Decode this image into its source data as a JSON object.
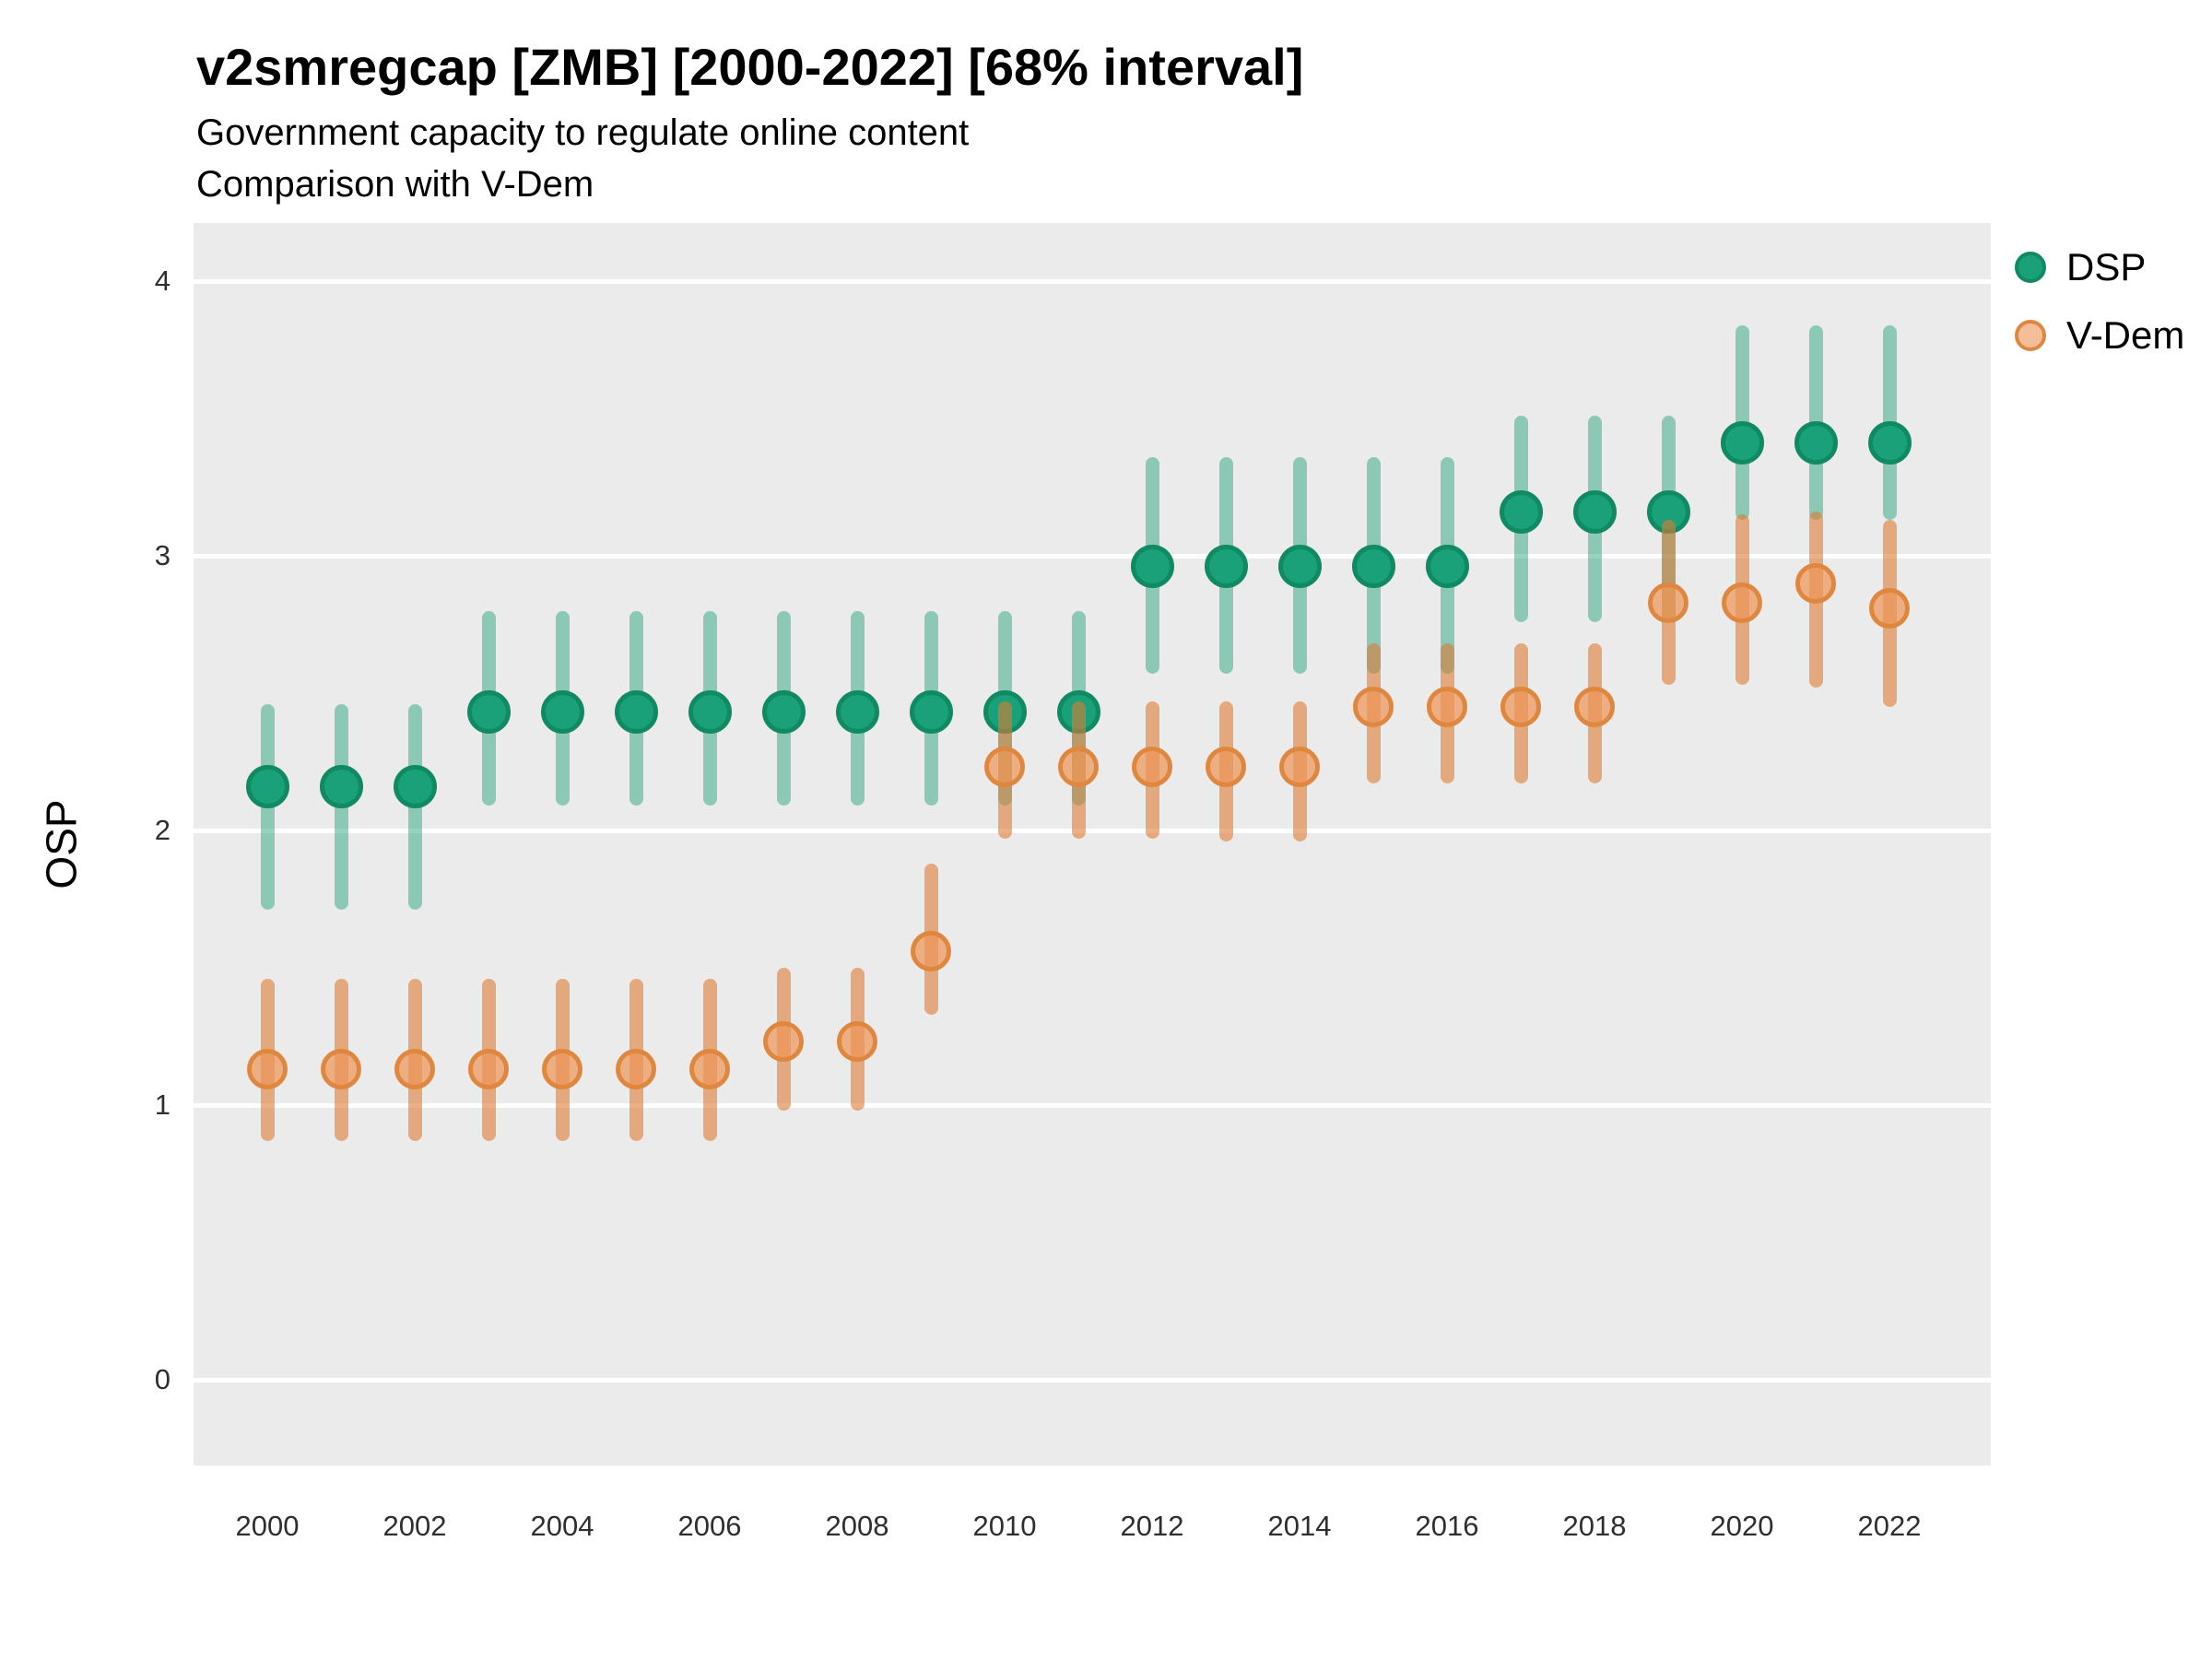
{
  "header": {
    "title": "v2smregcap [ZMB] [2000-2022] [68% interval]",
    "subtitle1": "Government capacity to regulate online content",
    "subtitle2": "Comparison with V-Dem"
  },
  "y_axis": {
    "label": "OSP",
    "ticks": [
      0,
      1,
      2,
      3,
      4
    ]
  },
  "x_axis": {
    "ticks": [
      2000,
      2002,
      2004,
      2006,
      2008,
      2010,
      2012,
      2014,
      2016,
      2018,
      2020,
      2022
    ]
  },
  "legend": {
    "items": [
      {
        "label": "DSP",
        "color": "#1aa179",
        "stroke": "#0f8a63"
      },
      {
        "label": "V-Dem",
        "color": "#f0a878",
        "stroke": "#e0873f"
      }
    ]
  },
  "colors": {
    "panel_background": "#ebebeb",
    "gridline": "#ffffff",
    "dsp_dot_fill": "#1aa179",
    "dsp_dot_stroke": "#0f8a63",
    "dsp_bar": "rgba(23,160,118,0.45)",
    "vdem_dot_fill": "rgba(238,150,86,0.70)",
    "vdem_dot_stroke": "#e0873f",
    "vdem_bar": "rgba(221,124,50,0.60)"
  },
  "chart_data": {
    "type": "scatter",
    "title": "v2smregcap [ZMB] [2000-2022] [68% interval]",
    "subtitle": [
      "Government capacity to regulate online content",
      "Comparison with V-Dem"
    ],
    "xlabel": "",
    "ylabel": "OSP",
    "interval": "68%",
    "ylim": [
      -0.31,
      4.21
    ],
    "y_ticks": [
      0,
      1,
      2,
      3,
      4
    ],
    "x_ticks": [
      2000,
      2002,
      2004,
      2006,
      2008,
      2010,
      2012,
      2014,
      2016,
      2018,
      2020,
      2022
    ],
    "grid": true,
    "legend_position": "right",
    "x": [
      2000,
      2001,
      2002,
      2003,
      2004,
      2005,
      2006,
      2007,
      2008,
      2009,
      2010,
      2011,
      2012,
      2013,
      2014,
      2015,
      2016,
      2017,
      2018,
      2019,
      2020,
      2021,
      2022
    ],
    "series": [
      {
        "name": "DSP",
        "values": [
          2.16,
          2.16,
          2.16,
          2.43,
          2.43,
          2.43,
          2.43,
          2.43,
          2.43,
          2.43,
          2.43,
          2.43,
          2.96,
          2.96,
          2.96,
          2.96,
          2.96,
          3.16,
          3.16,
          3.16,
          3.41,
          3.41,
          3.41
        ],
        "lower": [
          1.71,
          1.71,
          1.71,
          2.09,
          2.09,
          2.09,
          2.09,
          2.09,
          2.09,
          2.09,
          2.09,
          2.09,
          2.57,
          2.57,
          2.57,
          2.57,
          2.57,
          2.76,
          2.76,
          2.76,
          3.13,
          3.13,
          3.13
        ],
        "upper": [
          2.46,
          2.46,
          2.46,
          2.8,
          2.8,
          2.8,
          2.8,
          2.8,
          2.8,
          2.8,
          2.8,
          2.8,
          3.36,
          3.36,
          3.36,
          3.36,
          3.36,
          3.51,
          3.51,
          3.51,
          3.84,
          3.84,
          3.84
        ]
      },
      {
        "name": "V-Dem",
        "values": [
          1.13,
          1.13,
          1.13,
          1.13,
          1.13,
          1.13,
          1.13,
          1.23,
          1.23,
          1.56,
          2.23,
          2.23,
          2.23,
          2.23,
          2.23,
          2.45,
          2.45,
          2.45,
          2.45,
          2.83,
          2.83,
          2.9,
          2.81
        ],
        "lower": [
          0.87,
          0.87,
          0.87,
          0.87,
          0.87,
          0.87,
          0.87,
          0.98,
          0.98,
          1.33,
          1.97,
          1.97,
          1.97,
          1.96,
          1.96,
          2.17,
          2.17,
          2.17,
          2.17,
          2.53,
          2.53,
          2.52,
          2.45
        ],
        "upper": [
          1.46,
          1.46,
          1.46,
          1.46,
          1.46,
          1.46,
          1.46,
          1.5,
          1.5,
          1.88,
          2.47,
          2.47,
          2.47,
          2.47,
          2.47,
          2.68,
          2.68,
          2.68,
          2.68,
          3.13,
          3.15,
          3.16,
          3.13
        ]
      }
    ]
  }
}
